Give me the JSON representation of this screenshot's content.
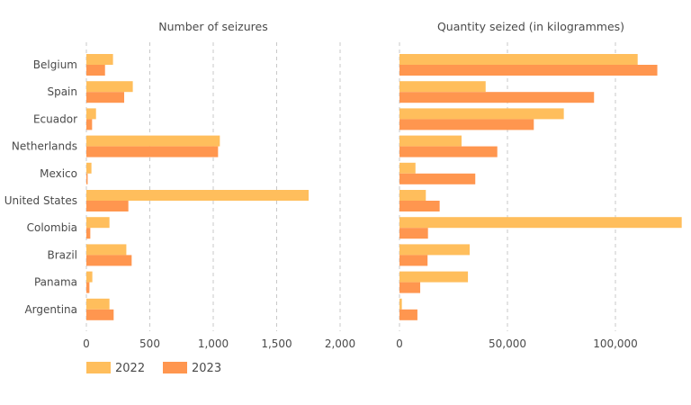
{
  "chart_data": [
    {
      "type": "bar",
      "orientation": "horizontal",
      "title": "Number of seizures",
      "xlabel": "",
      "ylabel": "",
      "categories": [
        "Belgium",
        "Spain",
        "Ecuador",
        "Netherlands",
        "Mexico",
        "United States",
        "Colombia",
        "Brazil",
        "Panama",
        "Argentina"
      ],
      "series": [
        {
          "name": "2022",
          "color": "#FFBE5C",
          "values": [
            210,
            366,
            76,
            1052,
            40,
            1752,
            182,
            315,
            47,
            182
          ]
        },
        {
          "name": "2023",
          "color": "#FF964F",
          "values": [
            147,
            298,
            45,
            1038,
            10,
            331,
            31,
            357,
            24,
            215
          ]
        }
      ],
      "xlim": [
        0,
        2000
      ],
      "ticks": [
        0,
        500,
        1000,
        1500,
        2000
      ],
      "tick_labels": [
        "0",
        "500",
        "1,000",
        "1,500",
        "2,000"
      ],
      "grid": true
    },
    {
      "type": "bar",
      "orientation": "horizontal",
      "title": "Quantity seized (in kilogrammes)",
      "xlabel": "",
      "ylabel": "",
      "categories": [
        "Belgium",
        "Spain",
        "Ecuador",
        "Netherlands",
        "Mexico",
        "United States",
        "Colombia",
        "Brazil",
        "Panama",
        "Argentina"
      ],
      "series": [
        {
          "name": "2022",
          "color": "#FFBE5C",
          "values": [
            110300,
            39900,
            76100,
            28750,
            7400,
            12200,
            130700,
            32500,
            31700,
            1100
          ]
        },
        {
          "name": "2023",
          "color": "#FF964F",
          "values": [
            119400,
            90100,
            62200,
            45300,
            35100,
            18600,
            13200,
            13000,
            9600,
            8300
          ]
        }
      ],
      "xlim": [
        0,
        130000
      ],
      "ticks": [
        0,
        50000,
        100000
      ],
      "tick_labels": [
        "0",
        "50,000",
        "100,000"
      ],
      "grid": true
    }
  ],
  "legend": {
    "placement": "bottom-left",
    "items": [
      {
        "label": "2022",
        "color": "#FFBE5C"
      },
      {
        "label": "2023",
        "color": "#FF964F"
      }
    ]
  }
}
